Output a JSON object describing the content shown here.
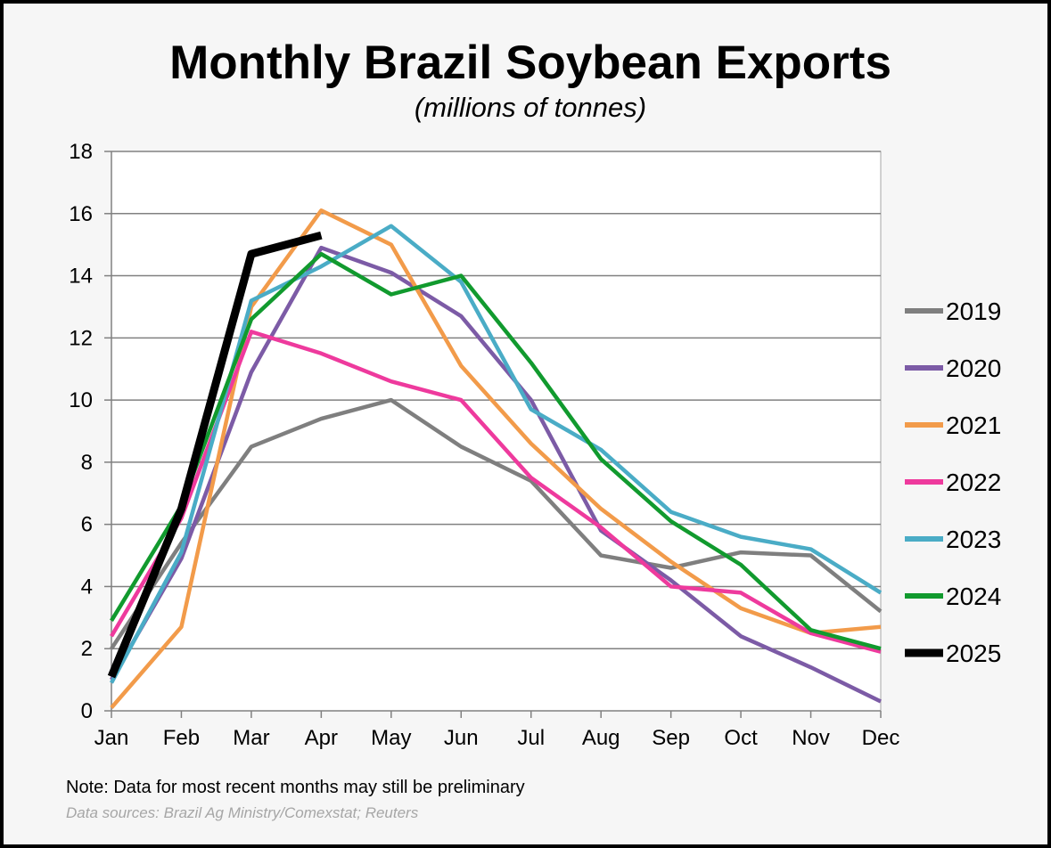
{
  "chart_data": {
    "type": "line",
    "title": "Monthly Brazil Soybean Exports",
    "subtitle": "(millions of tonnes)",
    "xlabel": "",
    "ylabel": "",
    "categories": [
      "Jan",
      "Feb",
      "Mar",
      "Apr",
      "May",
      "Jun",
      "Jul",
      "Aug",
      "Sep",
      "Oct",
      "Nov",
      "Dec"
    ],
    "ylim": [
      0,
      18
    ],
    "yticks": [
      "0",
      "2",
      "4",
      "6",
      "8",
      "10",
      "12",
      "14",
      "16",
      "18"
    ],
    "grid": "horizontal",
    "legend_position": "right",
    "series": [
      {
        "name": "2019",
        "color": "#7f7f7f",
        "values": [
          2.0,
          5.4,
          8.5,
          9.4,
          10.0,
          8.5,
          7.4,
          5.0,
          4.6,
          5.1,
          5.0,
          3.2
        ]
      },
      {
        "name": "2020",
        "color": "#7c5ba6",
        "values": [
          1.0,
          4.9,
          10.9,
          14.9,
          14.1,
          12.7,
          10.0,
          5.8,
          4.2,
          2.4,
          1.4,
          0.3
        ]
      },
      {
        "name": "2021",
        "color": "#f29b4a",
        "values": [
          0.1,
          2.7,
          13.0,
          16.1,
          15.0,
          11.1,
          8.6,
          6.5,
          4.8,
          3.3,
          2.5,
          2.7
        ]
      },
      {
        "name": "2022",
        "color": "#ee3a9d",
        "values": [
          2.4,
          6.2,
          12.2,
          11.5,
          10.6,
          10.0,
          7.5,
          5.9,
          4.0,
          3.8,
          2.5,
          1.9
        ]
      },
      {
        "name": "2023",
        "color": "#4aacc6",
        "values": [
          0.9,
          5.1,
          13.2,
          14.3,
          15.6,
          13.8,
          9.7,
          8.4,
          6.4,
          5.6,
          5.2,
          3.8
        ]
      },
      {
        "name": "2024",
        "color": "#119a2e",
        "values": [
          2.9,
          6.6,
          12.6,
          14.7,
          13.4,
          14.0,
          11.2,
          8.1,
          6.1,
          4.7,
          2.6,
          2.0
        ]
      },
      {
        "name": "2025",
        "color": "#000000",
        "width": 9,
        "values": [
          1.1,
          6.5,
          14.7,
          15.3,
          null,
          null,
          null,
          null,
          null,
          null,
          null,
          null
        ]
      }
    ]
  },
  "note": "Note: Data for most recent months may still be preliminary",
  "source": "Data sources: Brazil Ag Ministry/Comexstat; Reuters"
}
